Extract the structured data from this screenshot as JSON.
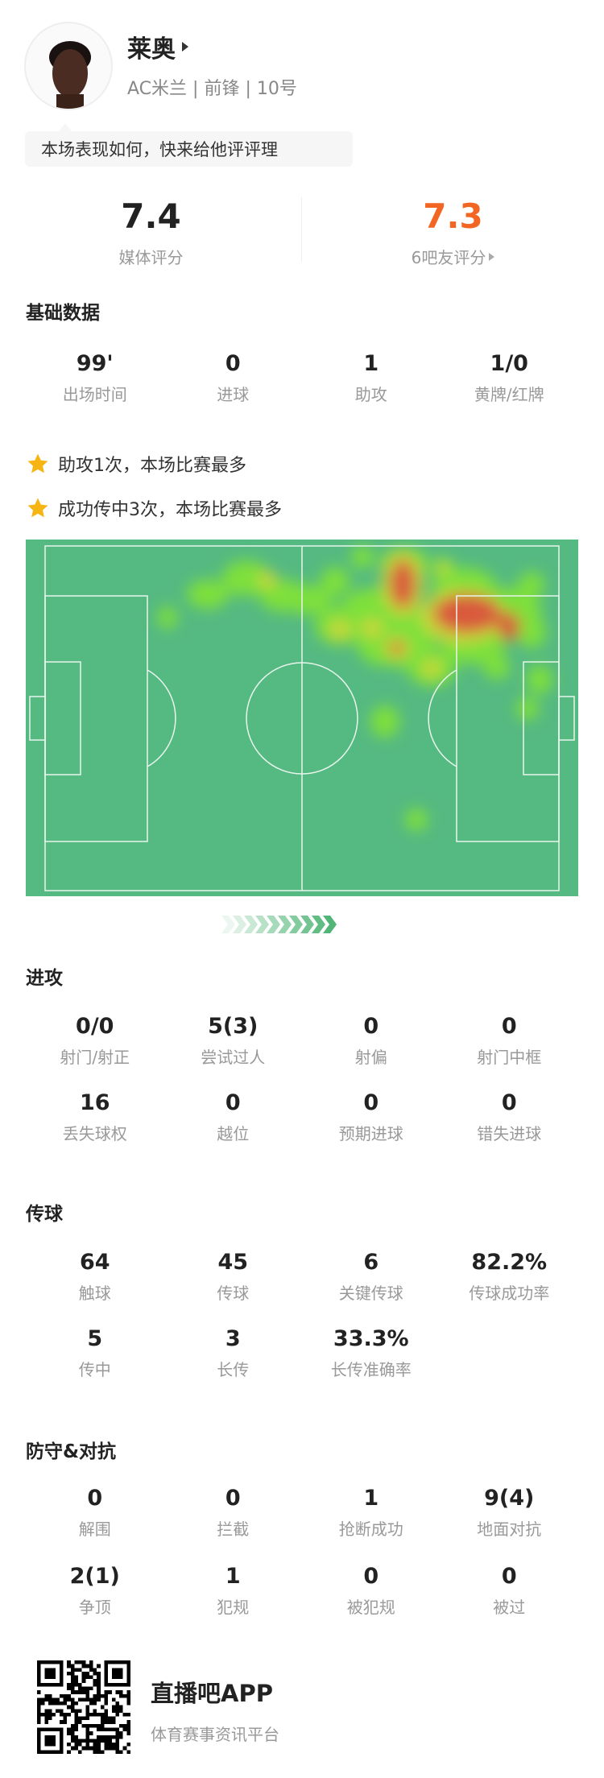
{
  "player": {
    "name": "莱奥",
    "team": "AC米兰",
    "position": "前锋",
    "number": "10号",
    "avatar_icon": "player-photo"
  },
  "prompt": "本场表现如何，快来给他评评理",
  "ratings": {
    "media": {
      "value": "7.4",
      "label": "媒体评分",
      "color": "#222222"
    },
    "fans": {
      "value": "7.3",
      "label": "6吧友评分",
      "color": "#f26522"
    }
  },
  "basic": {
    "title": "基础数据",
    "stats": [
      {
        "v": "99'",
        "l": "出场时间"
      },
      {
        "v": "0",
        "l": "进球"
      },
      {
        "v": "1",
        "l": "助攻"
      },
      {
        "v": "1/0",
        "l": "黄牌/红牌"
      }
    ]
  },
  "highlights": [
    {
      "icon": "star-icon",
      "text": "助攻1次，本场比赛最多"
    },
    {
      "icon": "star-icon",
      "text": "成功传中3次，本场比赛最多"
    }
  ],
  "heatmap": {
    "pitch_color": "#55b982",
    "line_color": "#e8f5ec"
  },
  "attack": {
    "title": "进攻",
    "stats": [
      {
        "v": "0/0",
        "l": "射门/射正"
      },
      {
        "v": "5(3)",
        "l": "尝试过人"
      },
      {
        "v": "0",
        "l": "射偏"
      },
      {
        "v": "0",
        "l": "射门中框"
      },
      {
        "v": "16",
        "l": "丢失球权"
      },
      {
        "v": "0",
        "l": "越位"
      },
      {
        "v": "0",
        "l": "预期进球"
      },
      {
        "v": "0",
        "l": "错失进球"
      }
    ]
  },
  "passing": {
    "title": "传球",
    "stats": [
      {
        "v": "64",
        "l": "触球"
      },
      {
        "v": "45",
        "l": "传球"
      },
      {
        "v": "6",
        "l": "关键传球"
      },
      {
        "v": "82.2%",
        "l": "传球成功率"
      },
      {
        "v": "5",
        "l": "传中"
      },
      {
        "v": "3",
        "l": "长传"
      },
      {
        "v": "33.3%",
        "l": "长传准确率"
      }
    ]
  },
  "defense": {
    "title": "防守&对抗",
    "stats": [
      {
        "v": "0",
        "l": "解围"
      },
      {
        "v": "0",
        "l": "拦截"
      },
      {
        "v": "1",
        "l": "抢断成功"
      },
      {
        "v": "9(4)",
        "l": "地面对抗"
      },
      {
        "v": "2(1)",
        "l": "争顶"
      },
      {
        "v": "1",
        "l": "犯规"
      },
      {
        "v": "0",
        "l": "被犯规"
      },
      {
        "v": "0",
        "l": "被过"
      }
    ]
  },
  "footer": {
    "app_name": "直播吧APP",
    "tagline": "体育赛事资讯平台",
    "qr_icon": "qr-code"
  }
}
